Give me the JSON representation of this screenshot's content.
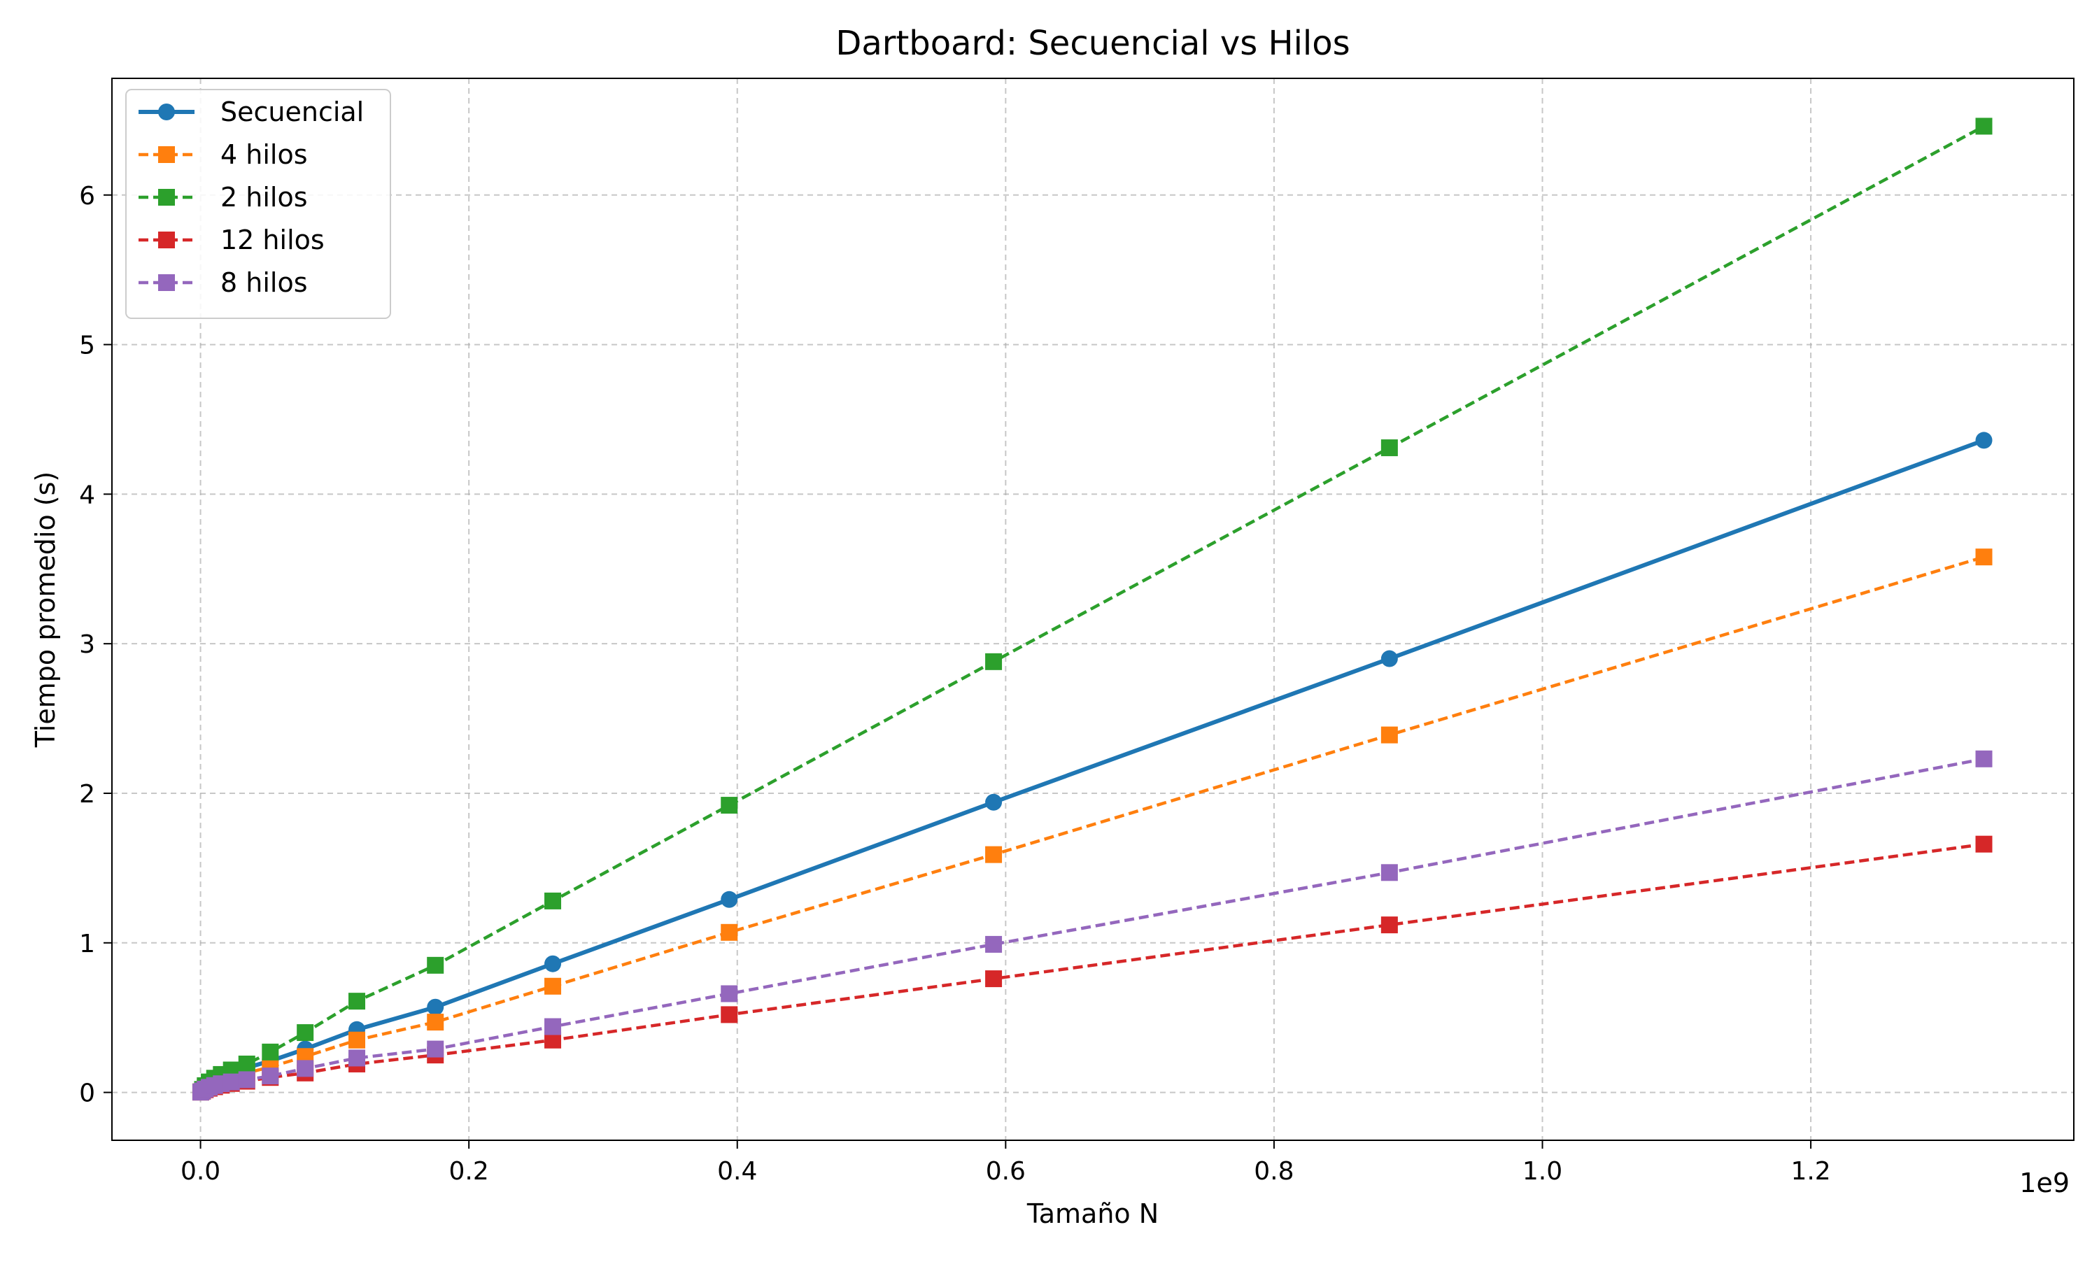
{
  "chart_data": {
    "type": "line",
    "title": "Dartboard: Secuencial vs Hilos",
    "xlabel": "Tamaño N",
    "ylabel": "Tiempo promedio (s)",
    "x_offset_label": "1e9",
    "xlim": [
      -0.066,
      1.396
    ],
    "ylim": [
      -0.32,
      6.78
    ],
    "xticks": [
      0.0,
      0.2,
      0.4,
      0.6,
      0.8,
      1.0,
      1.2
    ],
    "xtick_labels": [
      "0.0",
      "0.2",
      "0.4",
      "0.6",
      "0.8",
      "1.0",
      "1.2"
    ],
    "yticks": [
      0,
      1,
      2,
      3,
      4,
      5,
      6
    ],
    "ytick_labels": [
      "0",
      "1",
      "2",
      "3",
      "4",
      "5",
      "6"
    ],
    "grid": true,
    "legend_position": "top-left",
    "x": [
      0.0002,
      0.0015,
      0.0035,
      0.0065,
      0.0105,
      0.0155,
      0.023,
      0.0345,
      0.052,
      0.078,
      0.1165,
      0.175,
      0.2625,
      0.394,
      0.591,
      0.886,
      1.329
    ],
    "series": [
      {
        "name": "Secuencial",
        "color": "#1f77b4",
        "style": "solid",
        "marker": "circle",
        "values": [
          0.003,
          0.015,
          0.035,
          0.055,
          0.075,
          0.095,
          0.125,
          0.165,
          0.21,
          0.29,
          0.42,
          0.57,
          0.86,
          1.29,
          1.94,
          2.9,
          4.36
        ]
      },
      {
        "name": "4 hilos",
        "color": "#ff7f0e",
        "style": "dashed",
        "marker": "square",
        "values": [
          0.003,
          0.012,
          0.03,
          0.045,
          0.06,
          0.08,
          0.1,
          0.13,
          0.17,
          0.24,
          0.35,
          0.47,
          0.71,
          1.07,
          1.59,
          2.39,
          3.58
        ]
      },
      {
        "name": "2 hilos",
        "color": "#2ca02c",
        "style": "dashed",
        "marker": "square",
        "values": [
          0.004,
          0.02,
          0.045,
          0.07,
          0.095,
          0.12,
          0.15,
          0.19,
          0.27,
          0.4,
          0.61,
          0.85,
          1.28,
          1.92,
          2.88,
          4.31,
          6.46
        ]
      },
      {
        "name": "12 hilos",
        "color": "#d62728",
        "style": "dashed",
        "marker": "square",
        "values": [
          0.002,
          0.008,
          0.018,
          0.028,
          0.038,
          0.048,
          0.06,
          0.075,
          0.1,
          0.13,
          0.19,
          0.25,
          0.35,
          0.52,
          0.76,
          1.12,
          1.66
        ]
      },
      {
        "name": "8 hilos",
        "color": "#9467bd",
        "style": "dashed",
        "marker": "square",
        "values": [
          0.002,
          0.01,
          0.022,
          0.034,
          0.046,
          0.058,
          0.07,
          0.085,
          0.11,
          0.16,
          0.23,
          0.29,
          0.44,
          0.66,
          0.99,
          1.47,
          2.23
        ]
      }
    ]
  }
}
